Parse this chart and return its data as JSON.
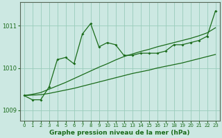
{
  "title": "Graphe pression niveau de la mer (hPa)",
  "background_color": "#cce8e2",
  "grid_color": "#99ccbb",
  "line_color": "#1a6b1a",
  "ylim": [
    1008.75,
    1011.55
  ],
  "xlim": [
    -0.5,
    23.5
  ],
  "yticks": [
    1009,
    1010,
    1011
  ],
  "xticks": [
    0,
    1,
    2,
    3,
    4,
    5,
    6,
    7,
    8,
    9,
    10,
    11,
    12,
    13,
    14,
    15,
    16,
    17,
    18,
    19,
    20,
    21,
    22,
    23
  ],
  "series1": [
    1009.35,
    1009.25,
    1009.25,
    1009.55,
    1010.2,
    1010.25,
    1010.1,
    1010.8,
    1011.05,
    1010.5,
    1010.6,
    1010.55,
    1010.3,
    1010.3,
    1010.35,
    1010.35,
    1010.35,
    1010.4,
    1010.55,
    1010.55,
    1010.6,
    1010.65,
    1010.75,
    1011.35
  ],
  "envelope_lower": [
    1009.35,
    1009.36,
    1009.37,
    1009.4,
    1009.44,
    1009.48,
    1009.52,
    1009.57,
    1009.62,
    1009.67,
    1009.72,
    1009.77,
    1009.82,
    1009.87,
    1009.91,
    1009.95,
    1010.0,
    1010.04,
    1010.08,
    1010.12,
    1010.17,
    1010.22,
    1010.27,
    1010.32
  ],
  "envelope_middle": [
    1009.35,
    1009.38,
    1009.42,
    1009.5,
    1009.58,
    1009.66,
    1009.75,
    1009.84,
    1009.93,
    1010.02,
    1010.1,
    1010.19,
    1010.27,
    1010.33,
    1010.39,
    1010.44,
    1010.5,
    1010.55,
    1010.6,
    1010.65,
    1010.7,
    1010.76,
    1010.83,
    1010.95
  ]
}
